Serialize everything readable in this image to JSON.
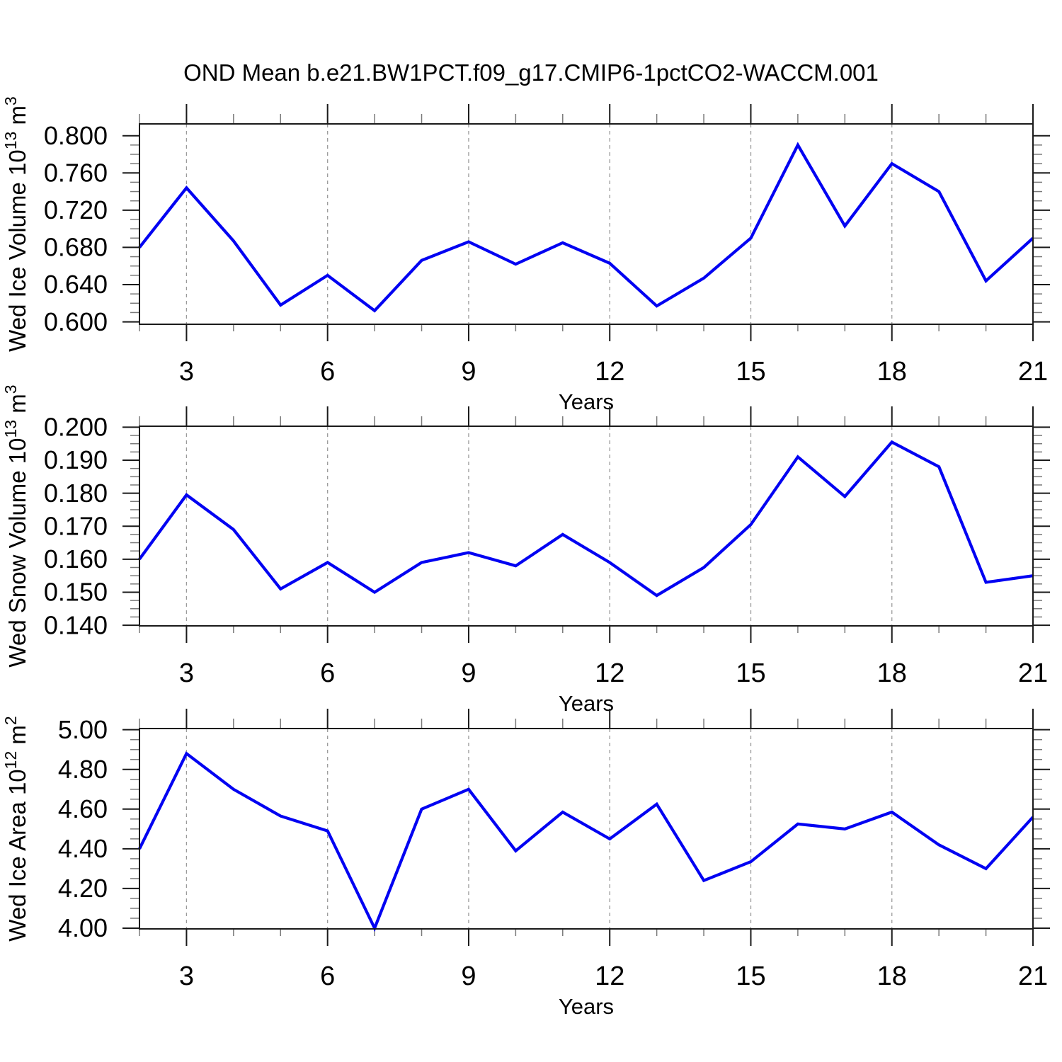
{
  "title": "OND Mean b.e21.BW1PCT.f09_g17.CMIP6-1pctCO2-WACCM.001",
  "colors": {
    "line": "#0202f2",
    "axis": "#1a1a1a",
    "major_tick": "#1a1a1a",
    "minor_tick": "#7a7a7a",
    "grid": "#9a9a9a",
    "text": "#000000",
    "background": "#ffffff"
  },
  "chart_data": [
    {
      "type": "line",
      "name": "wed-ice-volume",
      "ylabel": "Wed Ice Volume 10^13 m^3",
      "ylabel_parts": [
        {
          "t": "Wed Ice Volume 10"
        },
        {
          "t": "13",
          "sup": true
        },
        {
          "t": " m"
        },
        {
          "t": "3",
          "sup": true
        }
      ],
      "xlabel": "Years",
      "x": [
        2,
        3,
        4,
        5,
        6,
        7,
        8,
        9,
        10,
        11,
        12,
        13,
        14,
        15,
        16,
        17,
        18,
        19,
        20,
        21
      ],
      "values": [
        0.68,
        0.744,
        0.687,
        0.618,
        0.65,
        0.612,
        0.666,
        0.686,
        0.662,
        0.685,
        0.663,
        0.617,
        0.647,
        0.69,
        0.79,
        0.703,
        0.77,
        0.74,
        0.644,
        0.69
      ],
      "xlim": [
        2,
        21
      ],
      "ylim": [
        0.5974,
        0.8127
      ],
      "xticks": [
        3,
        6,
        9,
        12,
        15,
        18,
        21
      ],
      "xtick_labels": [
        "3",
        "6",
        "9",
        "12",
        "15",
        "18",
        "21"
      ],
      "x_minor_step": 1,
      "yticks": [
        0.6,
        0.64,
        0.68,
        0.72,
        0.76,
        0.8
      ],
      "ytick_labels": [
        "0.600",
        "0.640",
        "0.680",
        "0.720",
        "0.760",
        "0.800"
      ],
      "y_minor_step": 0.01,
      "grid_x": [
        3,
        6,
        9,
        12,
        15,
        18
      ],
      "grid": "vertical-dashed",
      "legend": "none"
    },
    {
      "type": "line",
      "name": "wed-snow-volume",
      "ylabel": "Wed Snow Volume 10^13 m^3",
      "ylabel_parts": [
        {
          "t": "Wed Snow Volume 10"
        },
        {
          "t": "13",
          "sup": true
        },
        {
          "t": " m"
        },
        {
          "t": "3",
          "sup": true
        }
      ],
      "xlabel": "Years",
      "x": [
        2,
        3,
        4,
        5,
        6,
        7,
        8,
        9,
        10,
        11,
        12,
        13,
        14,
        15,
        16,
        17,
        18,
        19,
        20,
        21
      ],
      "values": [
        0.16,
        0.1795,
        0.169,
        0.151,
        0.159,
        0.15,
        0.159,
        0.162,
        0.158,
        0.1675,
        0.159,
        0.149,
        0.1575,
        0.1705,
        0.191,
        0.179,
        0.1955,
        0.188,
        0.153,
        0.155
      ],
      "xlim": [
        2,
        21
      ],
      "ylim": [
        0.1398,
        0.2003
      ],
      "xticks": [
        3,
        6,
        9,
        12,
        15,
        18,
        21
      ],
      "xtick_labels": [
        "3",
        "6",
        "9",
        "12",
        "15",
        "18",
        "21"
      ],
      "x_minor_step": 1,
      "yticks": [
        0.14,
        0.15,
        0.16,
        0.17,
        0.18,
        0.19,
        0.2
      ],
      "ytick_labels": [
        "0.140",
        "0.150",
        "0.160",
        "0.170",
        "0.180",
        "0.190",
        "0.200"
      ],
      "y_minor_step": 0.0025,
      "grid_x": [
        3,
        6,
        9,
        12,
        15,
        18
      ],
      "grid": "vertical-dashed",
      "legend": "none"
    },
    {
      "type": "line",
      "name": "wed-ice-area",
      "ylabel": "Wed Ice Area 10^12 m^2",
      "ylabel_parts": [
        {
          "t": "Wed Ice Area 10"
        },
        {
          "t": "12",
          "sup": true
        },
        {
          "t": " m"
        },
        {
          "t": "2",
          "sup": true
        }
      ],
      "xlabel": "Years",
      "x": [
        2,
        3,
        4,
        5,
        6,
        7,
        8,
        9,
        10,
        11,
        12,
        13,
        14,
        15,
        16,
        17,
        18,
        19,
        20,
        21
      ],
      "values": [
        4.4,
        4.88,
        4.7,
        4.565,
        4.49,
        4.0,
        4.6,
        4.7,
        4.39,
        4.585,
        4.45,
        4.625,
        4.24,
        4.335,
        4.525,
        4.5,
        4.585,
        4.42,
        4.3,
        4.56
      ],
      "xlim": [
        2,
        21
      ],
      "ylim": [
        3.9964,
        5.006
      ],
      "xticks": [
        3,
        6,
        9,
        12,
        15,
        18,
        21
      ],
      "xtick_labels": [
        "3",
        "6",
        "9",
        "12",
        "15",
        "18",
        "21"
      ],
      "x_minor_step": 1,
      "yticks": [
        4.0,
        4.2,
        4.4,
        4.6,
        4.8,
        5.0
      ],
      "ytick_labels": [
        "4.00",
        "4.20",
        "4.40",
        "4.60",
        "4.80",
        "5.00"
      ],
      "y_minor_step": 0.05,
      "grid_x": [
        3,
        6,
        9,
        12,
        15,
        18
      ],
      "grid": "vertical-dashed",
      "legend": "none"
    }
  ]
}
